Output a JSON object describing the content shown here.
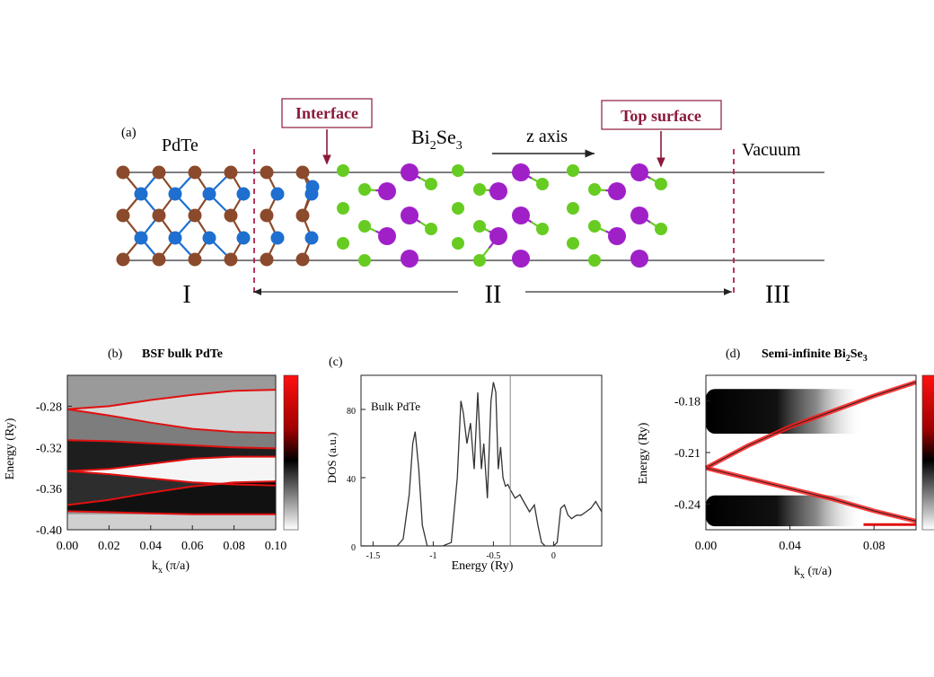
{
  "schematic": {
    "panel_label": "(a)",
    "pdte_label": "PdTe",
    "bi2se3_main": "Bi",
    "bi2se3_sub1": "2",
    "bi2se3_mid": "Se",
    "bi2se3_sub2": "3",
    "z_axis_label": "z axis",
    "interface_label": "Interface",
    "top_surface_label": "Top surface",
    "vacuum_label": "Vacuum",
    "region_I": "I",
    "region_II": "II",
    "region_III": "III",
    "colors": {
      "pd": "#8b4a2b",
      "te": "#1e6fd0",
      "bi": "#a020c8",
      "se": "#66cc22",
      "marker": "#8b1a3a"
    }
  },
  "chart_data": [
    {
      "panel": "(b)",
      "type": "heatmap",
      "title": "BSF bulk PdTe",
      "xlabel": "k",
      "xlabel_sub": "x",
      "xlabel_unit": " (π/a)",
      "ylabel": "Energy (Ry)",
      "xlim": [
        0.0,
        0.1
      ],
      "ylim": [
        -0.4,
        -0.25
      ],
      "xticks": [
        "0.00",
        "0.02",
        "0.04",
        "0.06",
        "0.08",
        "0.10"
      ],
      "xtick_values": [
        0.0,
        0.02,
        0.04,
        0.06,
        0.08,
        0.1
      ],
      "yticks": [
        "-0.28",
        "-0.32",
        "-0.36",
        "-0.40"
      ],
      "ytick_values": [
        -0.28,
        -0.32,
        -0.36,
        -0.4
      ],
      "bands": [
        {
          "name": "band-1",
          "x": [
            0.0,
            0.02,
            0.04,
            0.06,
            0.08,
            0.1
          ],
          "y": [
            -0.283,
            -0.28,
            -0.274,
            -0.269,
            -0.265,
            -0.264
          ]
        },
        {
          "name": "band-2",
          "x": [
            0.0,
            0.02,
            0.04,
            0.06,
            0.08,
            0.1
          ],
          "y": [
            -0.283,
            -0.289,
            -0.296,
            -0.302,
            -0.305,
            -0.306
          ]
        },
        {
          "name": "band-3",
          "x": [
            0.0,
            0.02,
            0.04,
            0.06,
            0.08,
            0.1
          ],
          "y": [
            -0.313,
            -0.314,
            -0.316,
            -0.318,
            -0.32,
            -0.321
          ]
        },
        {
          "name": "band-4",
          "x": [
            0.0,
            0.02,
            0.04,
            0.06,
            0.08,
            0.1
          ],
          "y": [
            -0.343,
            -0.341,
            -0.336,
            -0.331,
            -0.329,
            -0.329
          ]
        },
        {
          "name": "band-5",
          "x": [
            0.0,
            0.02,
            0.04,
            0.06,
            0.08,
            0.1
          ],
          "y": [
            -0.343,
            -0.346,
            -0.35,
            -0.354,
            -0.356,
            -0.357
          ]
        },
        {
          "name": "band-6",
          "x": [
            0.0,
            0.02,
            0.04,
            0.06,
            0.08,
            0.1
          ],
          "y": [
            -0.376,
            -0.371,
            -0.364,
            -0.358,
            -0.354,
            -0.353
          ]
        },
        {
          "name": "band-7",
          "x": [
            0.0,
            0.02,
            0.04,
            0.06,
            0.08,
            0.1
          ],
          "y": [
            -0.382,
            -0.383,
            -0.384,
            -0.385,
            -0.385,
            -0.385
          ]
        }
      ]
    },
    {
      "panel": "(c)",
      "type": "line",
      "annotation": "Bulk PdTe",
      "xlabel": "Energy (Ry)",
      "ylabel": "DOS (a.u.)",
      "xlim": [
        -1.6,
        0.4
      ],
      "ylim": [
        0,
        100
      ],
      "xticks": [
        "-1.5",
        "-1",
        "-0.5",
        "0"
      ],
      "xtick_values": [
        -1.5,
        -1.0,
        -0.5,
        0.0
      ],
      "yticks": [
        "0",
        "40",
        "80"
      ],
      "ytick_values": [
        0,
        40,
        80
      ],
      "fermi_level": -0.36,
      "series": [
        {
          "x": [
            -1.6,
            -1.4,
            -1.3,
            -1.25,
            -1.2,
            -1.17,
            -1.15,
            -1.12,
            -1.09,
            -1.05,
            -1.0,
            -0.92,
            -0.85,
            -0.8,
            -0.77,
            -0.75,
            -0.72,
            -0.69,
            -0.66,
            -0.63,
            -0.6,
            -0.58,
            -0.55,
            -0.52,
            -0.5,
            -0.48,
            -0.46,
            -0.44,
            -0.42,
            -0.4,
            -0.38,
            -0.36,
            -0.32,
            -0.28,
            -0.24,
            -0.2,
            -0.16,
            -0.13,
            -0.1,
            -0.07,
            -0.04,
            0.0,
            0.03,
            0.06,
            0.09,
            0.12,
            0.15,
            0.19,
            0.23,
            0.27,
            0.31,
            0.35,
            0.4
          ],
          "y": [
            0,
            0,
            0,
            4,
            30,
            60,
            67,
            45,
            12,
            0,
            0,
            0,
            2,
            40,
            85,
            78,
            60,
            72,
            45,
            90,
            45,
            60,
            28,
            85,
            96,
            90,
            45,
            58,
            40,
            35,
            36,
            33,
            28,
            30,
            25,
            20,
            24,
            12,
            2,
            0,
            0,
            0,
            2,
            22,
            24,
            18,
            16,
            18,
            18,
            20,
            22,
            26,
            20
          ]
        }
      ]
    },
    {
      "panel": "(d)",
      "type": "heatmap",
      "title_main": "Semi-infinite Bi",
      "title_sub1": "2",
      "title_mid": "Se",
      "title_sub2": "3",
      "xlabel": "k",
      "xlabel_sub": "x",
      "xlabel_unit": " (π/a)",
      "ylabel": "Energy (Ry)",
      "xlim": [
        0.0,
        0.1
      ],
      "ylim": [
        -0.255,
        -0.165
      ],
      "xticks": [
        "0.00",
        "0.04",
        "0.08"
      ],
      "xtick_values": [
        0.0,
        0.04,
        0.08
      ],
      "yticks": [
        "-0.18",
        "-0.21",
        "-0.24"
      ],
      "ytick_values": [
        -0.18,
        -0.21,
        -0.24
      ],
      "dirac_point": [
        0.0,
        -0.219
      ],
      "surface_states": [
        {
          "name": "upper-cone",
          "x": [
            0.0,
            0.02,
            0.04,
            0.06,
            0.08,
            0.1
          ],
          "y": [
            -0.219,
            -0.206,
            -0.195,
            -0.186,
            -0.177,
            -0.169
          ]
        },
        {
          "name": "lower-cone",
          "x": [
            0.0,
            0.02,
            0.04,
            0.06,
            0.08,
            0.1
          ],
          "y": [
            -0.219,
            -0.225,
            -0.231,
            -0.237,
            -0.244,
            -0.25
          ]
        }
      ],
      "bulk_bands": [
        {
          "name": "conduction",
          "y_top": -0.173,
          "y_bottom": -0.199
        },
        {
          "name": "valence",
          "y_top": -0.235,
          "y_bottom": -0.253
        }
      ]
    }
  ]
}
